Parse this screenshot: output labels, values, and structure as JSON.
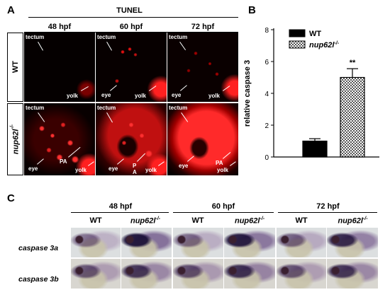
{
  "panel_a": {
    "label": "A",
    "title": "TUNEL",
    "columns": [
      "48 hpf",
      "60 hpf",
      "72 hpf"
    ],
    "rows": [
      {
        "label": "WT"
      },
      {
        "label": "nup62l",
        "sup": "-/-"
      }
    ],
    "image_labels": {
      "tectum": "tectum",
      "yolk": "yolk",
      "eye": "eye",
      "pa": "PA",
      "p": "P",
      "a": "A"
    }
  },
  "panel_b": {
    "label": "B",
    "significance": "**"
  },
  "chart_data": {
    "type": "bar",
    "categories": [
      "WT",
      "nup62l -/-"
    ],
    "values": [
      1.0,
      5.0
    ],
    "errors": [
      0.15,
      0.55
    ],
    "title": "",
    "xlabel": "",
    "ylabel": "relative caspase 3",
    "ylim": [
      0,
      8
    ],
    "yticks": [
      0,
      2,
      4,
      6,
      8
    ],
    "legend": [
      {
        "name": "WT",
        "color": "#000000",
        "pattern": "solid"
      },
      {
        "name": "nup62l",
        "sup": "-/-",
        "color": "#ffffff",
        "pattern": "checker"
      }
    ],
    "legend_position": "top-right",
    "grid": false
  },
  "panel_c": {
    "label": "C",
    "time_points": [
      "48 hpf",
      "60 hpf",
      "72 hpf"
    ],
    "genotypes": [
      {
        "label": "WT"
      },
      {
        "label": "nup62l",
        "sup": "-/-"
      }
    ],
    "rows": [
      {
        "label": "caspase 3a"
      },
      {
        "label": "caspase 3b"
      }
    ]
  }
}
